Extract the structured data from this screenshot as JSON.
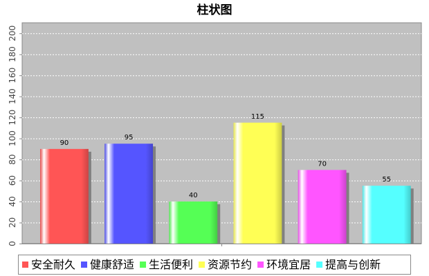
{
  "chart_data": {
    "type": "bar",
    "title": "柱状图",
    "xlabel": "",
    "ylabel": "",
    "categories": [
      "安全耐久",
      "健康舒适",
      "生活便利",
      "资源节约",
      "环境宜居",
      "提高与创新"
    ],
    "values": [
      90,
      95,
      40,
      115,
      70,
      55
    ],
    "data_labels": [
      "90",
      "95",
      "40",
      "115",
      "70",
      "55"
    ],
    "colors": [
      "#ff5555",
      "#5555ff",
      "#55ff55",
      "#ffff55",
      "#ff55ff",
      "#55ffff"
    ],
    "ylim": [
      0,
      210
    ],
    "yticks": [
      0,
      20,
      40,
      60,
      80,
      100,
      120,
      140,
      160,
      180,
      200
    ],
    "grid": true,
    "legend": "bottom",
    "plot_background": "#c0c0c0"
  }
}
